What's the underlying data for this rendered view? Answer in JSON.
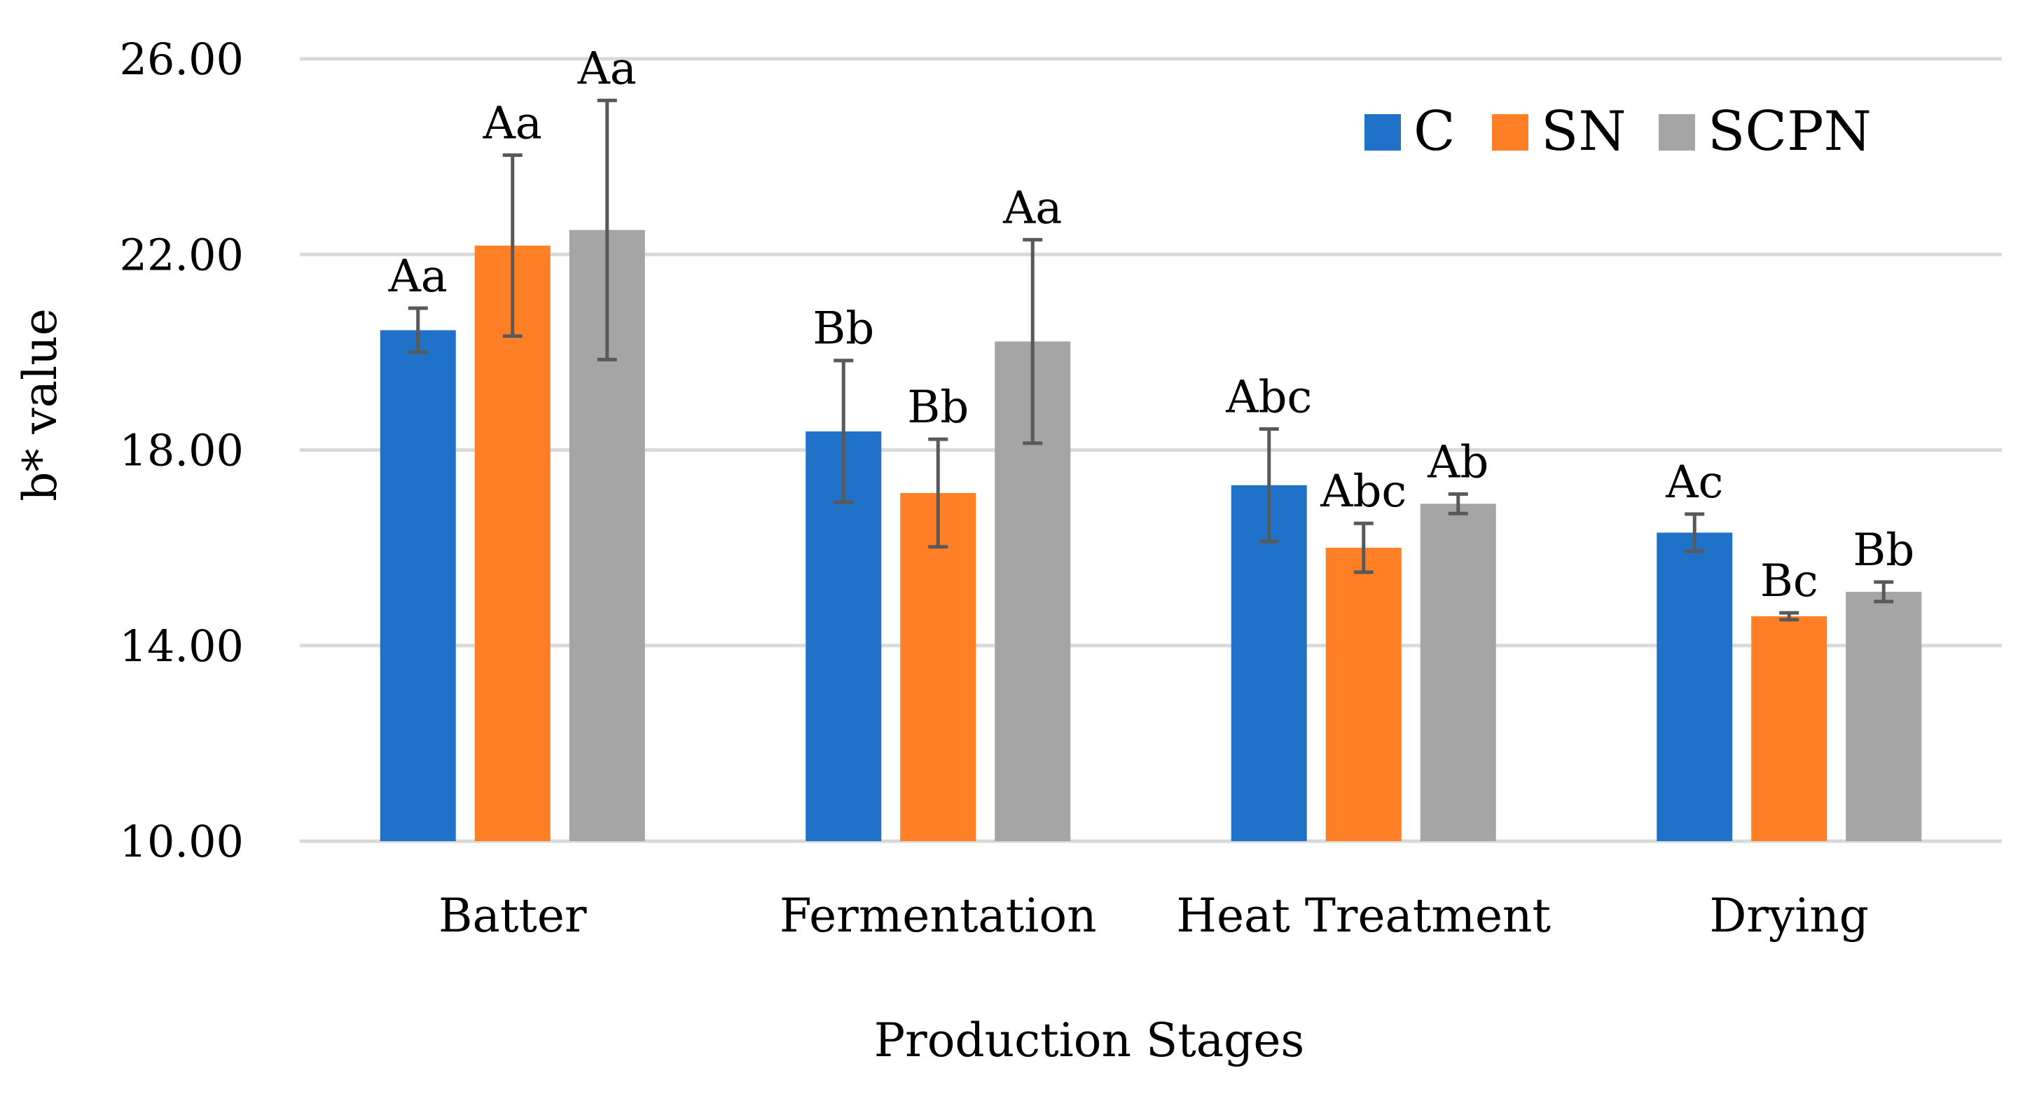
{
  "chart_data": {
    "type": "bar",
    "title": "",
    "xlabel": "Production Stages",
    "ylabel": "b* value",
    "ylim": [
      10,
      26
    ],
    "yticks": [
      "10.00",
      "14.00",
      "18.00",
      "22.00",
      "26.00"
    ],
    "grid": true,
    "legend_position": "top-right",
    "categories": [
      "Batter",
      "Fermentation",
      "Heat Treatment",
      "Drying"
    ],
    "series": [
      {
        "name": "C",
        "color": "#1F72C8",
        "values": [
          20.45,
          18.38,
          17.28,
          16.31
        ],
        "errors": [
          0.45,
          1.45,
          1.15,
          0.38
        ],
        "labels": [
          "Aa",
          "Bb",
          "Abc",
          "Ac"
        ]
      },
      {
        "name": "SN",
        "color": "#FF7F27",
        "values": [
          22.18,
          17.12,
          16.0,
          14.6
        ],
        "errors": [
          1.85,
          1.1,
          0.5,
          0.07
        ],
        "labels": [
          "Aa",
          "Bb",
          "Abc",
          "Bc"
        ]
      },
      {
        "name": "SCPN",
        "color": "#A5A5A5",
        "values": [
          22.5,
          20.22,
          16.9,
          15.1
        ],
        "errors": [
          2.65,
          2.08,
          0.2,
          0.2
        ],
        "labels": [
          "Aa",
          "Aa",
          "Ab",
          "Bb"
        ]
      }
    ]
  }
}
